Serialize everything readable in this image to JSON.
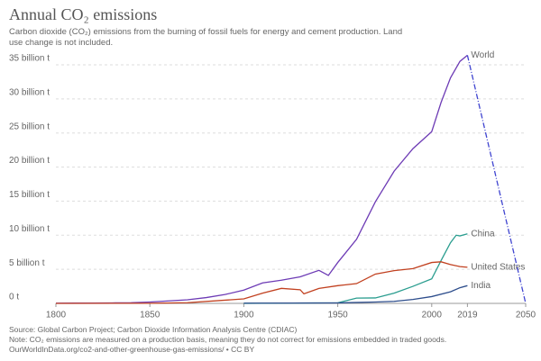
{
  "chart_data": {
    "type": "line",
    "title": "Annual CO₂ emissions",
    "subtitle": "Carbon dioxide (CO₂) emissions from the burning of fossil fuels for energy and cement production. Land use change is not included.",
    "source": "Source: Global Carbon Project; Carbon Dioxide Information Analysis Centre (CDIAC)",
    "note": "Note: CO₂ emissions are measured on a production basis, meaning they do not correct for emissions embedded in traded goods.",
    "url": "OurWorldInData.org/co2-and-other-greenhouse-gas-emissions/ • CC BY",
    "xlim": [
      1800,
      2050
    ],
    "xticks": [
      1800,
      1850,
      1900,
      1950,
      2000,
      2019,
      2050
    ],
    "ylim": [
      0,
      35
    ],
    "yticks": [
      {
        "value": 0,
        "label": "0 t"
      },
      {
        "value": 5,
        "label": "5 billion t"
      },
      {
        "value": 10,
        "label": "10 billion t"
      },
      {
        "value": 15,
        "label": "15 billion t"
      },
      {
        "value": 20,
        "label": "20 billion t"
      },
      {
        "value": 25,
        "label": "25 billion t"
      },
      {
        "value": 30,
        "label": "30 billion t"
      },
      {
        "value": 35,
        "label": "35 billion t"
      }
    ],
    "grid": true,
    "series": [
      {
        "name": "World",
        "color": "#6d3bb5",
        "x": [
          1800,
          1810,
          1820,
          1830,
          1840,
          1850,
          1860,
          1870,
          1880,
          1890,
          1900,
          1910,
          1920,
          1930,
          1940,
          1945,
          1950,
          1960,
          1970,
          1980,
          1990,
          2000,
          2005,
          2010,
          2015,
          2019
        ],
        "values": [
          0.03,
          0.04,
          0.05,
          0.07,
          0.1,
          0.2,
          0.36,
          0.53,
          0.85,
          1.3,
          1.95,
          3.0,
          3.4,
          3.9,
          4.85,
          4.1,
          6.0,
          9.4,
          14.9,
          19.4,
          22.7,
          25.2,
          29.5,
          33.1,
          35.5,
          36.4
        ]
      },
      {
        "name": "China",
        "color": "#2a9d8f",
        "x": [
          1900,
          1950,
          1960,
          1970,
          1980,
          1990,
          2000,
          2005,
          2010,
          2013,
          2015,
          2019
        ],
        "values": [
          0.01,
          0.08,
          0.78,
          0.8,
          1.5,
          2.5,
          3.6,
          6.3,
          8.9,
          10.0,
          9.9,
          10.2
        ]
      },
      {
        "name": "United States",
        "color": "#c1401f",
        "x": [
          1800,
          1850,
          1870,
          1900,
          1910,
          1920,
          1930,
          1932,
          1940,
          1950,
          1960,
          1970,
          1980,
          1990,
          2000,
          2005,
          2010,
          2015,
          2019
        ],
        "values": [
          0.0,
          0.02,
          0.1,
          0.66,
          1.5,
          2.2,
          2.0,
          1.4,
          2.2,
          2.6,
          2.9,
          4.3,
          4.8,
          5.1,
          6.0,
          6.1,
          5.7,
          5.4,
          5.3
        ]
      },
      {
        "name": "India",
        "color": "#2d4d8c",
        "x": [
          1900,
          1950,
          1970,
          1980,
          1990,
          2000,
          2010,
          2015,
          2019
        ],
        "values": [
          0.03,
          0.07,
          0.2,
          0.3,
          0.58,
          1.0,
          1.7,
          2.3,
          2.6
        ]
      },
      {
        "color": "#3f44d0",
        "dashed": true,
        "x": [
          2019,
          2050
        ],
        "values": [
          36.4,
          0
        ]
      }
    ]
  }
}
